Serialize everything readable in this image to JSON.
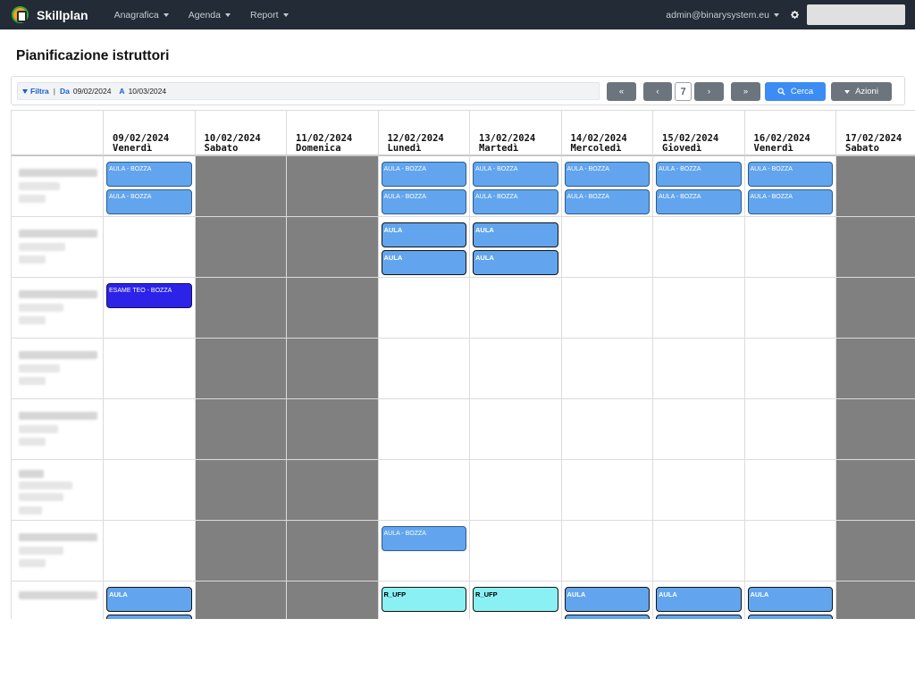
{
  "navbar": {
    "brand": "Skillplan",
    "menu": [
      "Anagrafica",
      "Agenda",
      "Report"
    ],
    "user": "admin@binarysystem.eu",
    "brand_color": "#222b36"
  },
  "page": {
    "title": "Pianificazione istruttori"
  },
  "filter": {
    "filter_label": "Filtra",
    "separator": "|",
    "from_label": "Da",
    "from_value": "09/02/2024",
    "to_label": "A",
    "to_value": "10/03/2024",
    "buttons": {
      "first": "«",
      "prev": "‹",
      "days": "7",
      "next": "›",
      "last": "»",
      "search": "Cerca",
      "actions": "Azioni"
    }
  },
  "calendar": {
    "columns": [
      {
        "date": "09/02/2024",
        "day": "Venerdì",
        "weekend": false
      },
      {
        "date": "10/02/2024",
        "day": "Sabato",
        "weekend": true
      },
      {
        "date": "11/02/2024",
        "day": "Domenica",
        "weekend": true
      },
      {
        "date": "12/02/2024",
        "day": "Lunedì",
        "weekend": false
      },
      {
        "date": "13/02/2024",
        "day": "Martedì",
        "weekend": false
      },
      {
        "date": "14/02/2024",
        "day": "Mercoledì",
        "weekend": false
      },
      {
        "date": "15/02/2024",
        "day": "Giovedì",
        "weekend": false
      },
      {
        "date": "16/02/2024",
        "day": "Venerdì",
        "weekend": false
      },
      {
        "date": "17/02/2024",
        "day": "Sabato",
        "weekend": true
      }
    ],
    "row_count": 8,
    "events": [
      {
        "row": 0,
        "col": 0,
        "slot": 0,
        "label": "AULA - BOZZA",
        "style": "draft"
      },
      {
        "row": 0,
        "col": 0,
        "slot": 1,
        "label": "AULA - BOZZA",
        "style": "draft"
      },
      {
        "row": 0,
        "col": 3,
        "slot": 0,
        "label": "AULA - BOZZA",
        "style": "draft"
      },
      {
        "row": 0,
        "col": 3,
        "slot": 1,
        "label": "AULA - BOZZA",
        "style": "draft"
      },
      {
        "row": 0,
        "col": 4,
        "slot": 0,
        "label": "AULA - BOZZA",
        "style": "draft"
      },
      {
        "row": 0,
        "col": 4,
        "slot": 1,
        "label": "AULA - BOZZA",
        "style": "draft"
      },
      {
        "row": 0,
        "col": 5,
        "slot": 0,
        "label": "AULA - BOZZA",
        "style": "draft"
      },
      {
        "row": 0,
        "col": 5,
        "slot": 1,
        "label": "AULA - BOZZA",
        "style": "draft"
      },
      {
        "row": 0,
        "col": 6,
        "slot": 0,
        "label": "AULA - BOZZA",
        "style": "draft"
      },
      {
        "row": 0,
        "col": 6,
        "slot": 1,
        "label": "AULA - BOZZA",
        "style": "draft"
      },
      {
        "row": 0,
        "col": 7,
        "slot": 0,
        "label": "AULA - BOZZA",
        "style": "draft"
      },
      {
        "row": 0,
        "col": 7,
        "slot": 1,
        "label": "AULA - BOZZA",
        "style": "draft"
      },
      {
        "row": 1,
        "col": 3,
        "slot": 0,
        "label": "AULA",
        "style": "confirmed"
      },
      {
        "row": 1,
        "col": 3,
        "slot": 1,
        "label": "AULA",
        "style": "confirmed"
      },
      {
        "row": 1,
        "col": 4,
        "slot": 0,
        "label": "AULA",
        "style": "confirmed"
      },
      {
        "row": 1,
        "col": 4,
        "slot": 1,
        "label": "AULA",
        "style": "confirmed"
      },
      {
        "row": 2,
        "col": 0,
        "slot": 0,
        "label": "ESAME TEO - BOZZA",
        "style": "exam"
      },
      {
        "row": 6,
        "col": 3,
        "slot": 0,
        "label": "AULA - BOZZA",
        "style": "draft"
      },
      {
        "row": 7,
        "col": 0,
        "slot": 0,
        "label": "AULA",
        "style": "confirmed"
      },
      {
        "row": 7,
        "col": 0,
        "slot": 1,
        "label": "",
        "style": "confirmed"
      },
      {
        "row": 7,
        "col": 3,
        "slot": 0,
        "label": "R_UFP",
        "style": "ufp"
      },
      {
        "row": 7,
        "col": 4,
        "slot": 0,
        "label": "R_UFP",
        "style": "ufp"
      },
      {
        "row": 7,
        "col": 5,
        "slot": 0,
        "label": "AULA",
        "style": "confirmed"
      },
      {
        "row": 7,
        "col": 5,
        "slot": 1,
        "label": "",
        "style": "confirmed"
      },
      {
        "row": 7,
        "col": 6,
        "slot": 0,
        "label": "AULA",
        "style": "confirmed"
      },
      {
        "row": 7,
        "col": 6,
        "slot": 1,
        "label": "",
        "style": "confirmed"
      },
      {
        "row": 7,
        "col": 7,
        "slot": 0,
        "label": "AULA",
        "style": "confirmed"
      },
      {
        "row": 7,
        "col": 7,
        "slot": 1,
        "label": "",
        "style": "confirmed"
      }
    ],
    "colors": {
      "draft": "#62a5ee",
      "exam": "#2c22e8",
      "ufp": "#8af0f4",
      "weekend": "#808080"
    }
  }
}
